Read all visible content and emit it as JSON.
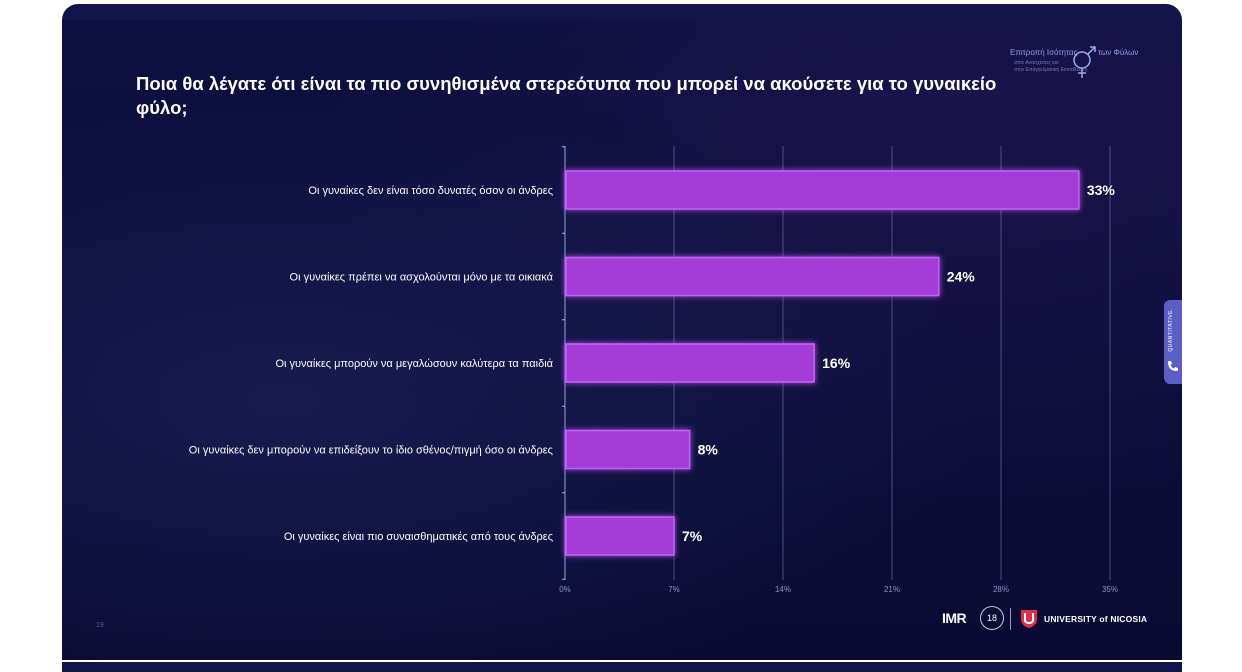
{
  "title": "Ποια θα λέγατε ότι είναι τα πιο συνηθισμένα στερεότυπα που μπορεί να ακούσετε για το γυναικείο φύλο;",
  "header_logo": {
    "line1": "Επιτροπή Ισότητας",
    "line2": "των Φύλων",
    "line3": "στον Ανασχέσεις και",
    "line4": "στην Επαγγελματική Εκπαίδευση"
  },
  "side_tab": {
    "label": "QUANTITATIVE",
    "icon": "phone-icon"
  },
  "page_number": "19",
  "footer_logos": {
    "imr_label": "IMR",
    "badge_label": "18",
    "university_label": "UNIVERSITY of NICOSIA"
  },
  "colors": {
    "background": "#0b0d3a",
    "bar": "#a43ed6",
    "bar_glow": "#c560ff",
    "grid": "#8a8fc4",
    "text": "#ffffff"
  },
  "chart_data": {
    "type": "bar",
    "orientation": "horizontal",
    "categories": [
      "Οι γυναίκες δεν είναι τόσο δυνατές όσον οι άνδρες",
      "Οι γυναίκες πρέπει να ασχολούνται μόνο με τα οικιακά",
      "Οι γυναίκες μπορούν να μεγαλώσουν καλύτερα τα παιδιά",
      "Οι γυναίκες δεν μπορούν να επιδείξουν το ίδιο σθένος/πιγμή όσο οι άνδρες",
      "Οι γυναίκες είναι πιο συναισθηματικές από τους άνδρες"
    ],
    "values": [
      33,
      24,
      16,
      8,
      7
    ],
    "value_labels": [
      "33%",
      "24%",
      "16%",
      "8%",
      "7%"
    ],
    "x_ticks": [
      0,
      7,
      14,
      21,
      28,
      35
    ],
    "x_tick_labels": [
      "0%",
      "7%",
      "14%",
      "21%",
      "28%",
      "35%"
    ],
    "xlim": [
      0,
      35
    ],
    "grid": true,
    "legend": "none"
  }
}
